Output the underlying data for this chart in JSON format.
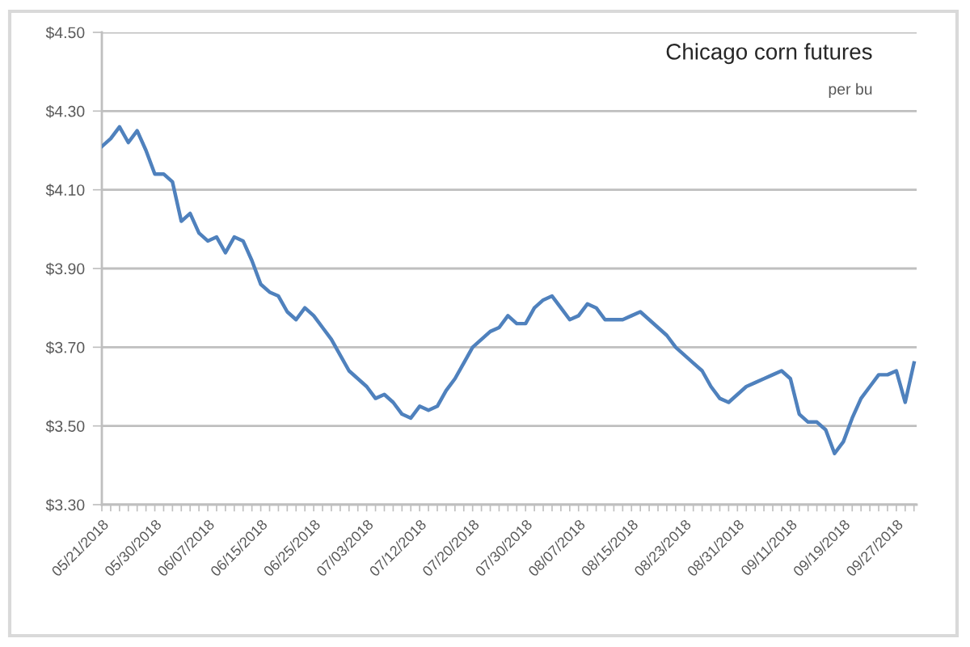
{
  "chart_data": {
    "type": "line",
    "title": "Chicago corn futures",
    "subtitle": "per bu",
    "categories": [
      "05/21/2018",
      null,
      null,
      null,
      null,
      null,
      "05/30/2018",
      null,
      null,
      null,
      null,
      null,
      "06/07/2018",
      null,
      null,
      null,
      null,
      null,
      "06/15/2018",
      null,
      null,
      null,
      null,
      null,
      "06/25/2018",
      null,
      null,
      null,
      null,
      null,
      "07/03/2018",
      null,
      null,
      null,
      null,
      null,
      "07/12/2018",
      null,
      null,
      null,
      null,
      null,
      "07/20/2018",
      null,
      null,
      null,
      null,
      null,
      "07/30/2018",
      null,
      null,
      null,
      null,
      null,
      "08/07/2018",
      null,
      null,
      null,
      null,
      null,
      "08/15/2018",
      null,
      null,
      null,
      null,
      null,
      "08/23/2018",
      null,
      null,
      null,
      null,
      null,
      "08/31/2018",
      null,
      null,
      null,
      null,
      null,
      "09/11/2018",
      null,
      null,
      null,
      null,
      null,
      "09/19/2018",
      null,
      null,
      null,
      null,
      null,
      "09/27/2018",
      null,
      null
    ],
    "series": [
      {
        "color": "#4f81bd",
        "values": [
          4.21,
          4.23,
          4.26,
          4.22,
          4.25,
          4.2,
          4.14,
          4.14,
          4.12,
          4.02,
          4.04,
          3.99,
          3.97,
          3.98,
          3.94,
          3.98,
          3.97,
          3.92,
          3.86,
          3.84,
          3.83,
          3.79,
          3.77,
          3.8,
          3.78,
          3.75,
          3.72,
          3.68,
          3.64,
          3.62,
          3.6,
          3.57,
          3.58,
          3.56,
          3.53,
          3.52,
          3.55,
          3.54,
          3.55,
          3.59,
          3.62,
          3.66,
          3.7,
          3.72,
          3.74,
          3.75,
          3.78,
          3.76,
          3.76,
          3.8,
          3.82,
          3.83,
          3.8,
          3.77,
          3.78,
          3.81,
          3.8,
          3.77,
          3.77,
          3.77,
          3.78,
          3.79,
          3.77,
          3.75,
          3.73,
          3.7,
          3.68,
          3.66,
          3.64,
          3.6,
          3.57,
          3.56,
          3.58,
          3.6,
          3.61,
          3.62,
          3.63,
          3.64,
          3.62,
          3.53,
          3.51,
          3.51,
          3.49,
          3.43,
          3.46,
          3.52,
          3.57,
          3.6,
          3.63,
          3.63,
          3.64,
          3.56,
          3.66
        ]
      }
    ],
    "ylim": [
      3.3,
      4.5
    ],
    "yticks": [
      {
        "value": 3.3,
        "label": "$3.30"
      },
      {
        "value": 3.5,
        "label": "$3.50"
      },
      {
        "value": 3.7,
        "label": "$3.70"
      },
      {
        "value": 3.9,
        "label": "$3.90"
      },
      {
        "value": 4.1,
        "label": "$4.10"
      },
      {
        "value": 4.3,
        "label": "$4.30"
      },
      {
        "value": 4.5,
        "label": "$4.50"
      }
    ],
    "grid": "y"
  }
}
